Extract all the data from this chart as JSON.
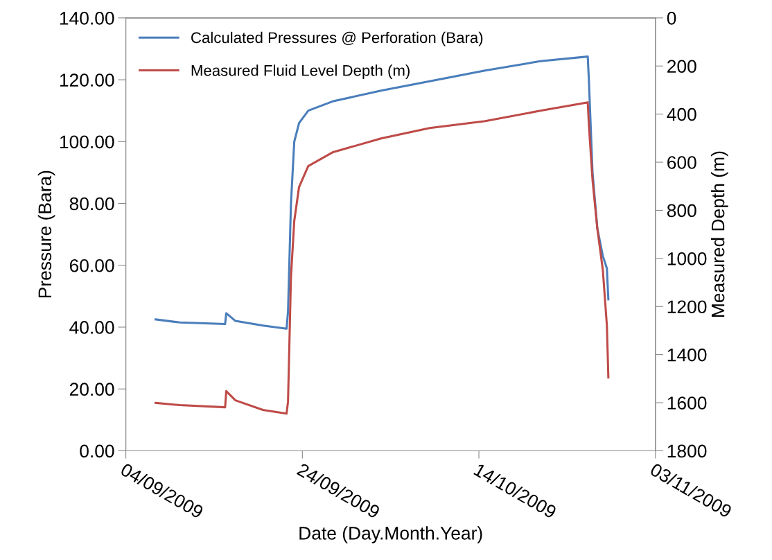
{
  "chart_data": {
    "type": "line",
    "xlabel": "Date (Day.Month.Year)",
    "ylabel": "Pressure (Bara)",
    "y2label": "Measured Depth (m)",
    "x": [
      "2009-09-07T09:00",
      "2009-09-10T03:00",
      "2009-09-15T06:00",
      "2009-09-15T09:00",
      "2009-09-16T10:00",
      "2009-09-19T13:00",
      "2009-09-22T05:00",
      "2009-09-22T09:00",
      "2009-09-22T17:00",
      "2009-09-23T02:00",
      "2009-09-23T15:00",
      "2009-09-24T16:00",
      "2009-09-27T10:00",
      "2009-10-02T22:00",
      "2009-10-08T10:00",
      "2009-10-14T17:00",
      "2009-10-20T23:00",
      "2009-10-26T08:00",
      "2009-10-26T11:00",
      "2009-10-26T21:00",
      "2009-10-27T10:00",
      "2009-10-28T01:00",
      "2009-10-28T12:00",
      "2009-10-28T16:00"
    ],
    "series": [
      {
        "name": "Calculated Pressures @ Perforation (Bara)",
        "color": "#4a7ebb",
        "values": [
          42.5,
          41.5,
          41,
          44.5,
          42,
          40.5,
          39.5,
          45,
          80,
          100,
          106,
          110,
          113,
          116.5,
          119.5,
          123,
          126,
          127.5,
          120,
          90,
          72,
          63,
          59,
          49
        ]
      },
      {
        "name": "Measured Fluid Level Depth (m)",
        "color": "#be4b48",
        "axis": "y2",
        "values": [
          1601,
          1610,
          1619,
          1552,
          1590,
          1630,
          1645,
          1596,
          1077,
          844,
          703,
          616,
          559,
          501,
          458,
          429,
          386,
          351,
          444,
          674,
          876,
          1048,
          1279,
          1495
        ]
      }
    ],
    "xlim": [
      "2009-09-04",
      "2009-11-03"
    ],
    "xticks": [
      {
        "value": "2009-09-04",
        "label": "04/09/2009"
      },
      {
        "value": "2009-09-24",
        "label": "24/09/2009"
      },
      {
        "value": "2009-10-14",
        "label": "14/10/2009"
      },
      {
        "value": "2009-11-03",
        "label": "03/11/2009"
      }
    ],
    "ylim": [
      0,
      140
    ],
    "yticks": [
      {
        "value": 0,
        "label": "0.00"
      },
      {
        "value": 20,
        "label": "20.00"
      },
      {
        "value": 40,
        "label": "40.00"
      },
      {
        "value": 60,
        "label": "60.00"
      },
      {
        "value": 80,
        "label": "80.00"
      },
      {
        "value": 100,
        "label": "100.00"
      },
      {
        "value": 120,
        "label": "120.00"
      },
      {
        "value": 140,
        "label": "140.00"
      }
    ],
    "y2lim": [
      1800,
      0
    ],
    "y2ticks": [
      0,
      200,
      400,
      600,
      800,
      1000,
      1200,
      1400,
      1600,
      1800
    ],
    "grid": false,
    "legend": "top left",
    "marker": "none",
    "line_style": "solid"
  }
}
